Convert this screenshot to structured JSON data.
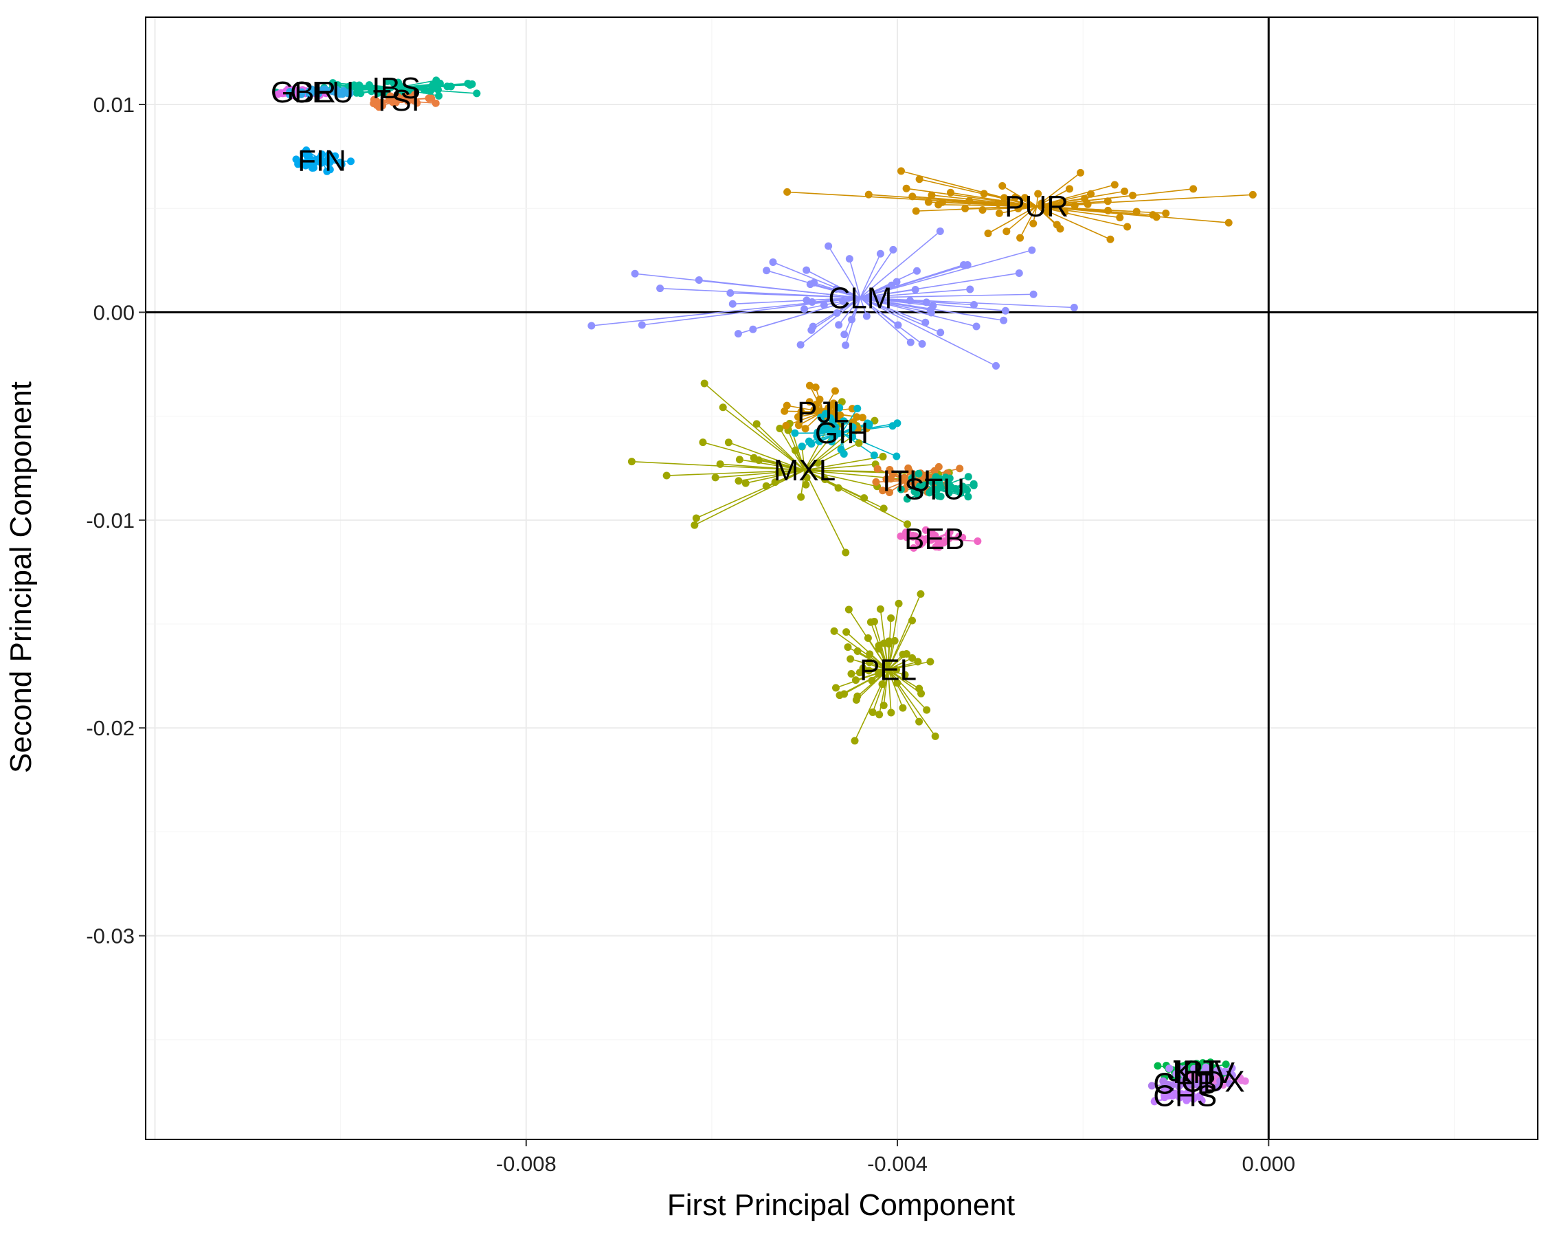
{
  "chart_data": {
    "type": "scatter",
    "title": "",
    "xlabel": "First Principal Component",
    "ylabel": "Second Principal Component",
    "xlim": [
      -0.0121,
      0.0029
    ],
    "ylim": [
      -0.0398,
      0.0142
    ],
    "x_ticks": [
      -0.008,
      -0.004,
      0.0
    ],
    "x_tick_labels": [
      "-0.008",
      "-0.004",
      "0.000"
    ],
    "y_ticks": [
      0.01,
      0.0,
      -0.01,
      -0.02,
      -0.03
    ],
    "y_tick_labels": [
      "0.01",
      "0.00",
      "-0.01",
      "-0.02",
      "-0.03"
    ],
    "grid": true,
    "reference_lines": {
      "x": 0.0,
      "y": 0.0
    },
    "legend": "none",
    "series": [
      {
        "name": "PUR",
        "color": "#cf8f00",
        "centroid": [
          -0.0025,
          0.0051
        ],
        "spread": [
          0.0022,
          0.0016
        ],
        "n": 55
      },
      {
        "name": "CLM",
        "color": "#8f91ff",
        "centroid": [
          -0.0044,
          0.0007
        ],
        "spread": [
          0.0024,
          0.0028
        ],
        "n": 60
      },
      {
        "name": "PEL",
        "color": "#9ea600",
        "centroid": [
          -0.0041,
          -0.0172
        ],
        "spread": [
          0.0007,
          0.0032
        ],
        "n": 55
      },
      {
        "name": "MXL",
        "color": "#9ea600",
        "centroid": [
          -0.005,
          -0.0076
        ],
        "spread": [
          0.0016,
          0.0035
        ],
        "n": 45
      },
      {
        "name": "PJL",
        "color": "#d08f00",
        "centroid": [
          -0.0048,
          -0.0048
        ],
        "spread": [
          0.0006,
          0.0012
        ],
        "n": 35
      },
      {
        "name": "GIH",
        "color": "#00b6c8",
        "centroid": [
          -0.0046,
          -0.0058
        ],
        "spread": [
          0.0006,
          0.0012
        ],
        "n": 35
      },
      {
        "name": "ITU",
        "color": "#e07e2c",
        "centroid": [
          -0.0039,
          -0.0081
        ],
        "spread": [
          0.0005,
          0.0008
        ],
        "n": 35
      },
      {
        "name": "STU",
        "color": "#00b592",
        "centroid": [
          -0.0036,
          -0.0085
        ],
        "spread": [
          0.0005,
          0.0008
        ],
        "n": 35
      },
      {
        "name": "BEB",
        "color": "#f066c4",
        "centroid": [
          -0.0036,
          -0.0109
        ],
        "spread": [
          0.0004,
          0.0005
        ],
        "n": 30
      },
      {
        "name": "IBS",
        "color": "#00bd98",
        "centroid": [
          -0.0094,
          0.0108
        ],
        "spread": [
          0.0012,
          0.0004
        ],
        "n": 40
      },
      {
        "name": "TSI",
        "color": "#ea7e40",
        "centroid": [
          -0.0094,
          0.0102
        ],
        "spread": [
          0.0004,
          0.0003
        ],
        "n": 30
      },
      {
        "name": "GBR",
        "color": "#e166e8",
        "centroid": [
          -0.0104,
          0.0106
        ],
        "spread": [
          0.0003,
          0.0002
        ],
        "n": 30
      },
      {
        "name": "CEU",
        "color": "#2ea8e8",
        "centroid": [
          -0.0102,
          0.0106
        ],
        "spread": [
          0.0003,
          0.0002
        ],
        "n": 30
      },
      {
        "name": "FIN",
        "color": "#00a9f0",
        "centroid": [
          -0.0102,
          0.0073
        ],
        "spread": [
          0.0003,
          0.0006
        ],
        "n": 35
      },
      {
        "name": "JPT",
        "color": "#00b84c",
        "centroid": [
          -0.0008,
          -0.0365
        ],
        "spread": [
          0.0005,
          0.0006
        ],
        "n": 30
      },
      {
        "name": "KHV",
        "color": "#b68cff",
        "centroid": [
          -0.0007,
          -0.0366
        ],
        "spread": [
          0.0004,
          0.0003
        ],
        "n": 30
      },
      {
        "name": "CDX",
        "color": "#e87de2",
        "centroid": [
          -0.0006,
          -0.037
        ],
        "spread": [
          0.0004,
          0.0003
        ],
        "n": 30
      },
      {
        "name": "CHB",
        "color": "#b07cf0",
        "centroid": [
          -0.0009,
          -0.0371
        ],
        "spread": [
          0.0004,
          0.0003
        ],
        "n": 30
      },
      {
        "name": "CHS",
        "color": "#c27cff",
        "centroid": [
          -0.0009,
          -0.0377
        ],
        "spread": [
          0.0004,
          0.0003
        ],
        "n": 30
      }
    ]
  }
}
